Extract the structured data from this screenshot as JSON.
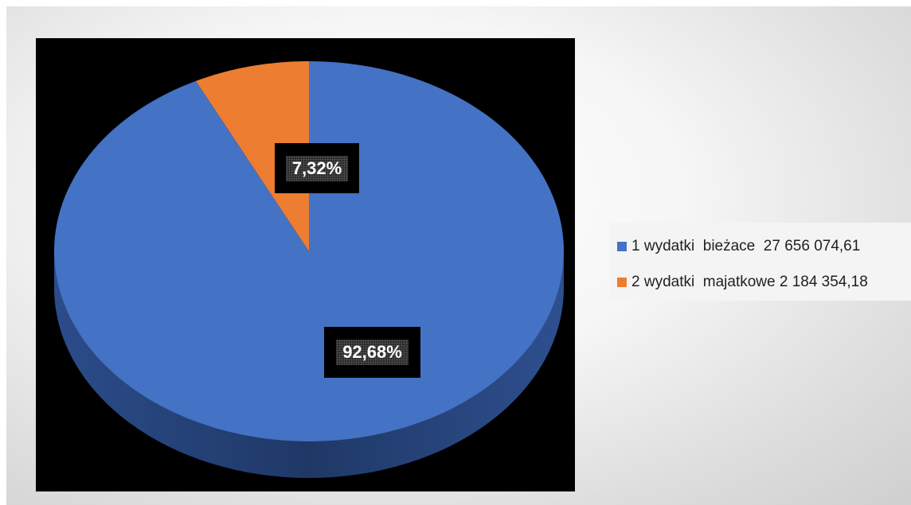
{
  "chart_data": {
    "type": "pie",
    "style": "3d",
    "title": "",
    "slices": [
      {
        "label": "1 wydatki  bieżace  27 656 074,61",
        "value": 27656074.61,
        "percent_label": "92,68%",
        "color": "#4472c4"
      },
      {
        "label": "2 wydatki  majatkowe 2 184 354,18",
        "value": 2184354.18,
        "percent_label": "7,32%",
        "color": "#ed7d31"
      }
    ],
    "legend_position": "right",
    "plot_background": "#000000",
    "data_label_color": "#ffffff"
  }
}
